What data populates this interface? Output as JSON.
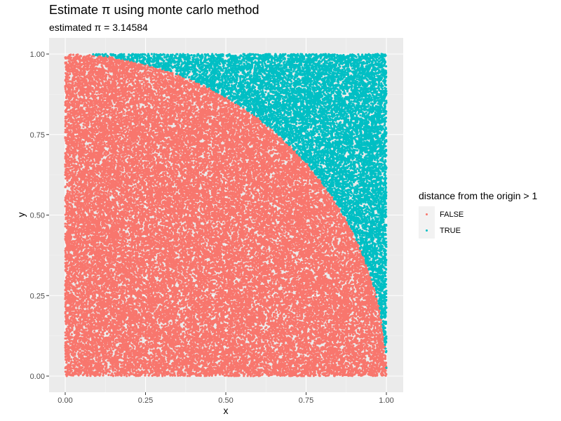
{
  "chart_data": {
    "type": "scatter",
    "title": "Estimate π using monte carlo method",
    "subtitle": "estimated π = 3.14584",
    "xlabel": "x",
    "ylabel": "y",
    "xlim": [
      0,
      1
    ],
    "ylim": [
      0,
      1
    ],
    "x_ticks": [
      0,
      0.25,
      0.5,
      0.75,
      1
    ],
    "y_ticks": [
      0,
      0.25,
      0.5,
      0.75,
      1
    ],
    "x_tick_labels": [
      "0.00",
      "0.25",
      "0.50",
      "0.75",
      "1.00"
    ],
    "y_tick_labels": [
      "0.00",
      "0.25",
      "0.50",
      "0.75",
      "1.00"
    ],
    "n_points": 50000,
    "grid": true,
    "legend": {
      "title": "distance from the origin > 1",
      "placement": "right",
      "entries": [
        {
          "label": "FALSE",
          "color": "#F8766D"
        },
        {
          "label": "TRUE",
          "color": "#00BFC4"
        }
      ]
    },
    "colors": {
      "panel_bg": "#EBEBEB",
      "grid_major": "#FFFFFF",
      "grid_minor": "#F5F5F5"
    }
  }
}
